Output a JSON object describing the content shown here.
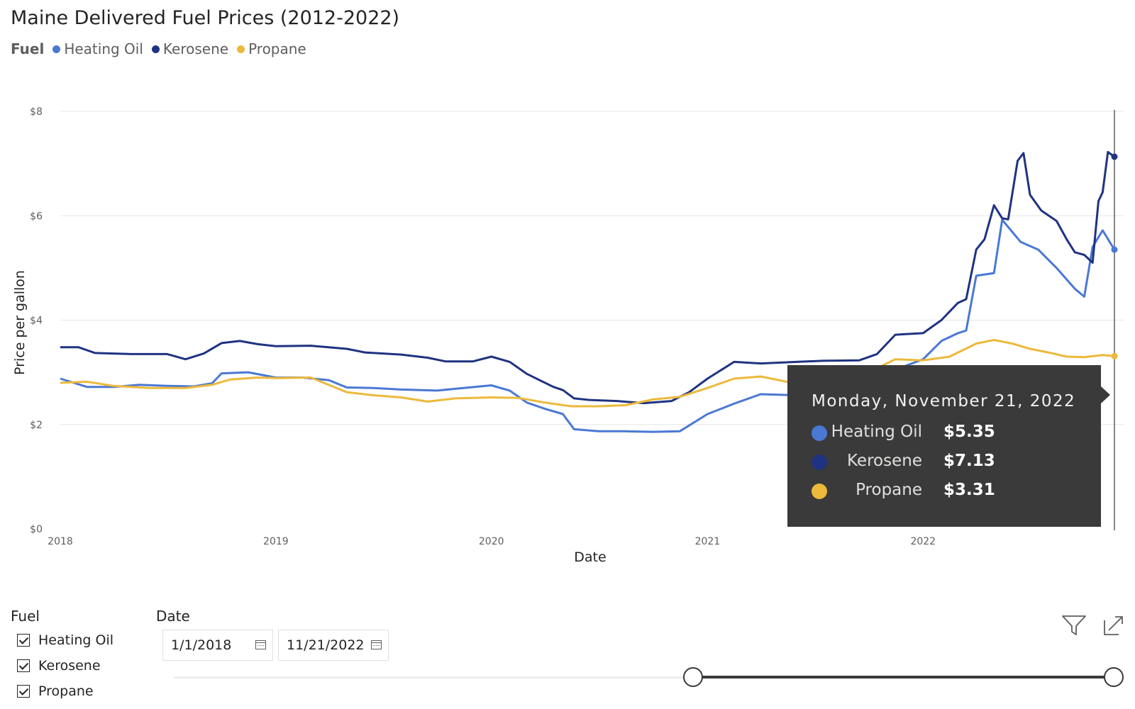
{
  "header": {
    "title": "Maine Delivered Fuel Prices (2012-2022)",
    "legend_title": "Fuel"
  },
  "colors": {
    "heating_oil": "#4a78d4",
    "kerosene": "#1f3381",
    "propane": "#ecb93b",
    "tooltip_bg": "#3a3a3a"
  },
  "chart_data": {
    "type": "line",
    "title": "Maine Delivered Fuel Prices (2012-2022)",
    "xlabel": "Date",
    "ylabel": "Price per gallon",
    "xlim": [
      "2018-01-01",
      "2022-11-21"
    ],
    "ylim": [
      0,
      8
    ],
    "xticks": [
      "2018",
      "2019",
      "2020",
      "2021",
      "2022"
    ],
    "yticks": [
      "$0",
      "$2",
      "$4",
      "$6",
      "$8"
    ],
    "grid": "horizontal",
    "legend_position": "top-left",
    "series": [
      {
        "name": "Heating Oil",
        "points": [
          [
            "2018-01-01",
            2.88
          ],
          [
            "2018-02-15",
            2.72
          ],
          [
            "2018-04-01",
            2.72
          ],
          [
            "2018-05-15",
            2.76
          ],
          [
            "2018-07-01",
            2.74
          ],
          [
            "2018-08-15",
            2.73
          ],
          [
            "2018-09-15",
            2.79
          ],
          [
            "2018-10-01",
            2.98
          ],
          [
            "2018-11-15",
            3.0
          ],
          [
            "2019-01-01",
            2.9
          ],
          [
            "2019-02-15",
            2.9
          ],
          [
            "2019-04-01",
            2.85
          ],
          [
            "2019-05-01",
            2.71
          ],
          [
            "2019-06-15",
            2.7
          ],
          [
            "2019-08-01",
            2.67
          ],
          [
            "2019-10-01",
            2.65
          ],
          [
            "2019-11-15",
            2.7
          ],
          [
            "2020-01-01",
            2.75
          ],
          [
            "2020-02-01",
            2.65
          ],
          [
            "2020-03-01",
            2.42
          ],
          [
            "2020-04-01",
            2.3
          ],
          [
            "2020-05-01",
            2.2
          ],
          [
            "2020-05-20",
            1.91
          ],
          [
            "2020-07-01",
            1.87
          ],
          [
            "2020-08-15",
            1.87
          ],
          [
            "2020-10-01",
            1.86
          ],
          [
            "2020-11-15",
            1.87
          ],
          [
            "2021-01-01",
            2.2
          ],
          [
            "2021-02-15",
            2.4
          ],
          [
            "2021-04-01",
            2.58
          ],
          [
            "2021-06-01",
            2.56
          ],
          [
            "2021-08-01",
            2.6
          ],
          [
            "2021-10-01",
            2.85
          ],
          [
            "2021-11-15",
            3.05
          ],
          [
            "2022-01-01",
            3.25
          ],
          [
            "2022-02-01",
            3.6
          ],
          [
            "2022-03-01",
            3.75
          ],
          [
            "2022-03-15",
            3.8
          ],
          [
            "2022-04-01",
            4.85
          ],
          [
            "2022-05-01",
            4.9
          ],
          [
            "2022-05-15",
            5.92
          ],
          [
            "2022-06-15",
            5.5
          ],
          [
            "2022-07-15",
            5.35
          ],
          [
            "2022-08-15",
            5.0
          ],
          [
            "2022-09-15",
            4.6
          ],
          [
            "2022-10-01",
            4.45
          ],
          [
            "2022-10-15",
            5.4
          ],
          [
            "2022-11-01",
            5.72
          ],
          [
            "2022-11-21",
            5.35
          ]
        ]
      },
      {
        "name": "Kerosene",
        "points": [
          [
            "2018-01-01",
            3.48
          ],
          [
            "2018-02-01",
            3.48
          ],
          [
            "2018-03-01",
            3.37
          ],
          [
            "2018-05-01",
            3.35
          ],
          [
            "2018-07-01",
            3.35
          ],
          [
            "2018-08-01",
            3.25
          ],
          [
            "2018-09-01",
            3.36
          ],
          [
            "2018-10-01",
            3.56
          ],
          [
            "2018-11-01",
            3.6
          ],
          [
            "2018-12-01",
            3.54
          ],
          [
            "2019-01-01",
            3.5
          ],
          [
            "2019-03-01",
            3.51
          ],
          [
            "2019-05-01",
            3.45
          ],
          [
            "2019-06-01",
            3.38
          ],
          [
            "2019-08-01",
            3.34
          ],
          [
            "2019-09-15",
            3.28
          ],
          [
            "2019-10-15",
            3.21
          ],
          [
            "2019-12-01",
            3.21
          ],
          [
            "2020-01-01",
            3.3
          ],
          [
            "2020-02-01",
            3.2
          ],
          [
            "2020-03-01",
            2.97
          ],
          [
            "2020-04-15",
            2.72
          ],
          [
            "2020-05-01",
            2.66
          ],
          [
            "2020-05-20",
            2.5
          ],
          [
            "2020-06-15",
            2.47
          ],
          [
            "2020-08-01",
            2.45
          ],
          [
            "2020-09-15",
            2.41
          ],
          [
            "2020-11-01",
            2.45
          ],
          [
            "2020-12-01",
            2.62
          ],
          [
            "2021-01-01",
            2.88
          ],
          [
            "2021-02-15",
            3.2
          ],
          [
            "2021-04-01",
            3.17
          ],
          [
            "2021-06-01",
            3.2
          ],
          [
            "2021-07-15",
            3.22
          ],
          [
            "2021-09-15",
            3.23
          ],
          [
            "2021-10-15",
            3.35
          ],
          [
            "2021-11-15",
            3.72
          ],
          [
            "2022-01-01",
            3.75
          ],
          [
            "2022-02-01",
            4.0
          ],
          [
            "2022-03-01",
            4.33
          ],
          [
            "2022-03-15",
            4.4
          ],
          [
            "2022-04-01",
            5.35
          ],
          [
            "2022-04-15",
            5.55
          ],
          [
            "2022-05-01",
            6.2
          ],
          [
            "2022-05-15",
            5.95
          ],
          [
            "2022-05-25",
            5.93
          ],
          [
            "2022-06-10",
            7.05
          ],
          [
            "2022-06-20",
            7.2
          ],
          [
            "2022-07-01",
            6.4
          ],
          [
            "2022-07-20",
            6.1
          ],
          [
            "2022-08-15",
            5.9
          ],
          [
            "2022-09-01",
            5.55
          ],
          [
            "2022-09-15",
            5.3
          ],
          [
            "2022-10-01",
            5.25
          ],
          [
            "2022-10-15",
            5.1
          ],
          [
            "2022-10-25",
            6.28
          ],
          [
            "2022-11-01",
            6.45
          ],
          [
            "2022-11-10",
            7.22
          ],
          [
            "2022-11-21",
            7.13
          ]
        ]
      },
      {
        "name": "Propane",
        "points": [
          [
            "2018-01-01",
            2.8
          ],
          [
            "2018-02-15",
            2.82
          ],
          [
            "2018-04-01",
            2.74
          ],
          [
            "2018-06-01",
            2.7
          ],
          [
            "2018-08-01",
            2.7
          ],
          [
            "2018-09-15",
            2.76
          ],
          [
            "2018-10-15",
            2.86
          ],
          [
            "2018-12-01",
            2.9
          ],
          [
            "2019-01-01",
            2.89
          ],
          [
            "2019-03-01",
            2.9
          ],
          [
            "2019-05-01",
            2.62
          ],
          [
            "2019-06-15",
            2.56
          ],
          [
            "2019-08-01",
            2.52
          ],
          [
            "2019-09-15",
            2.44
          ],
          [
            "2019-11-01",
            2.5
          ],
          [
            "2020-01-01",
            2.52
          ],
          [
            "2020-02-15",
            2.51
          ],
          [
            "2020-04-01",
            2.42
          ],
          [
            "2020-05-15",
            2.35
          ],
          [
            "2020-07-01",
            2.35
          ],
          [
            "2020-08-15",
            2.37
          ],
          [
            "2020-10-01",
            2.48
          ],
          [
            "2020-11-15",
            2.53
          ],
          [
            "2021-01-01",
            2.7
          ],
          [
            "2021-02-15",
            2.88
          ],
          [
            "2021-04-01",
            2.92
          ],
          [
            "2021-06-01",
            2.78
          ],
          [
            "2021-08-01",
            2.78
          ],
          [
            "2021-10-01",
            3.0
          ],
          [
            "2021-11-15",
            3.25
          ],
          [
            "2022-01-01",
            3.23
          ],
          [
            "2022-02-15",
            3.3
          ],
          [
            "2022-04-01",
            3.55
          ],
          [
            "2022-05-01",
            3.62
          ],
          [
            "2022-06-01",
            3.55
          ],
          [
            "2022-07-01",
            3.45
          ],
          [
            "2022-08-01",
            3.38
          ],
          [
            "2022-09-01",
            3.3
          ],
          [
            "2022-10-01",
            3.29
          ],
          [
            "2022-11-01",
            3.33
          ],
          [
            "2022-11-21",
            3.31
          ]
        ]
      }
    ]
  },
  "tooltip": {
    "date": "Monday, November 21, 2022",
    "rows": [
      {
        "name": "Heating Oil",
        "value": "$5.35"
      },
      {
        "name": "Kerosene",
        "value": "$7.13"
      },
      {
        "name": "Propane",
        "value": "$3.31"
      }
    ]
  },
  "fuel_slicer": {
    "title": "Fuel",
    "items": [
      {
        "label": "Heating Oil",
        "checked": true
      },
      {
        "label": "Kerosene",
        "checked": true
      },
      {
        "label": "Propane",
        "checked": true
      }
    ]
  },
  "date_slicer": {
    "title": "Date",
    "start": "1/1/2018",
    "end": "11/21/2022",
    "range_fraction": [
      0.55,
      1.0
    ]
  },
  "icons": {
    "filter": "filter-icon",
    "focus": "focus-mode-icon",
    "calendar": "calendar-icon"
  }
}
